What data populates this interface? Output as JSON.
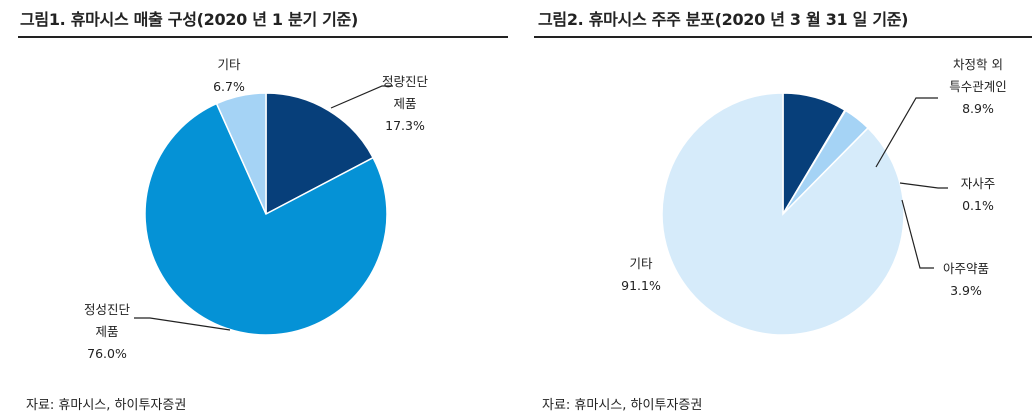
{
  "chart_data": [
    {
      "type": "pie",
      "title": "그림1. 휴마시스 매출 구성(2020 년 1 분기 기준)",
      "source": "자료: 휴마시스, 하이투자증권",
      "slices": [
        {
          "label_lines": [
            "정량진단",
            "제품"
          ],
          "value": 17.3,
          "value_text": "17.3%",
          "color": "#073f7a"
        },
        {
          "label_lines": [
            "정성진단",
            "제품"
          ],
          "value": 76.0,
          "value_text": "76.0%",
          "color": "#0592d6"
        },
        {
          "label_lines": [
            "기타"
          ],
          "value": 6.7,
          "value_text": "6.7%",
          "color": "#a5d3f5"
        }
      ]
    },
    {
      "type": "pie",
      "title": "그림2. 휴마시스 주주 분포(2020 년 3 월 31 일 기준)",
      "source": "자료: 휴마시스, 하이투자증권",
      "slices": [
        {
          "label_lines": [
            "차정학 외",
            "특수관계인"
          ],
          "value": 8.9,
          "value_text": "8.9%",
          "color": "#073f7a"
        },
        {
          "label_lines": [
            "자사주"
          ],
          "value": 0.1,
          "value_text": "0.1%",
          "color": "#0592d6"
        },
        {
          "label_lines": [
            "아주약품"
          ],
          "value": 3.9,
          "value_text": "3.9%",
          "color": "#a5d3f5"
        },
        {
          "label_lines": [
            "기타"
          ],
          "value": 91.1,
          "value_text": "91.1%",
          "color": "#d6ebfa"
        }
      ]
    }
  ]
}
